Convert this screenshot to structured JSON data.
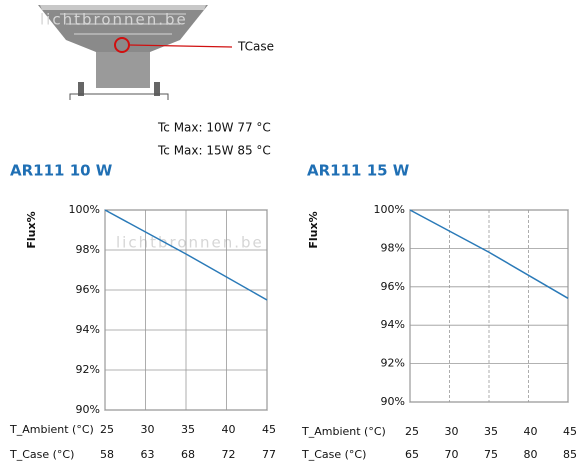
{
  "image": {
    "callout": "TCase",
    "notes": [
      "Tc Max: 10W 77 °C",
      "Tc Max: 15W 85 °C"
    ],
    "watermark": "lichtbronnen.be"
  },
  "chart_data": [
    {
      "type": "line",
      "title": "AR111 10 W",
      "ylabel": "Flux%",
      "x": [
        25,
        35,
        45
      ],
      "values": [
        100,
        97.8,
        95.5
      ],
      "color": "#2a7ab8",
      "xlim": [
        25,
        45
      ],
      "xticks": [
        25,
        30,
        35,
        40,
        45
      ],
      "xlabel": "T_Ambient (°C)",
      "x2ticks": [
        58,
        63,
        68,
        72,
        77
      ],
      "x2label": "T_Case (°C)",
      "ylim": [
        90,
        100
      ],
      "yticks": [
        {
          "value": 90,
          "label": "90%"
        },
        {
          "value": 92,
          "label": "92%"
        },
        {
          "value": 94,
          "label": "94%"
        },
        {
          "value": 96,
          "label": "96%"
        },
        {
          "value": 98,
          "label": "98%"
        },
        {
          "value": 100,
          "label": "100%"
        }
      ],
      "grid": true
    },
    {
      "type": "line",
      "title": "AR111 15 W",
      "ylabel": "Flux%",
      "x": [
        25,
        35,
        45
      ],
      "values": [
        100,
        97.8,
        95.4
      ],
      "color": "#2a7ab8",
      "xlim": [
        25,
        45
      ],
      "xticks": [
        25,
        30,
        35,
        40,
        45
      ],
      "xlabel": "T_Ambient (°C)",
      "x2ticks": [
        65,
        70,
        75,
        80,
        85
      ],
      "x2label": "T_Case (°C)",
      "ylim": [
        90,
        100
      ],
      "yticks": [
        {
          "value": 90,
          "label": "90%"
        },
        {
          "value": 92,
          "label": "92%"
        },
        {
          "value": 94,
          "label": "94%"
        },
        {
          "value": 96,
          "label": "96%"
        },
        {
          "value": 98,
          "label": "98%"
        },
        {
          "value": 100,
          "label": "100%"
        }
      ],
      "grid": true
    }
  ]
}
